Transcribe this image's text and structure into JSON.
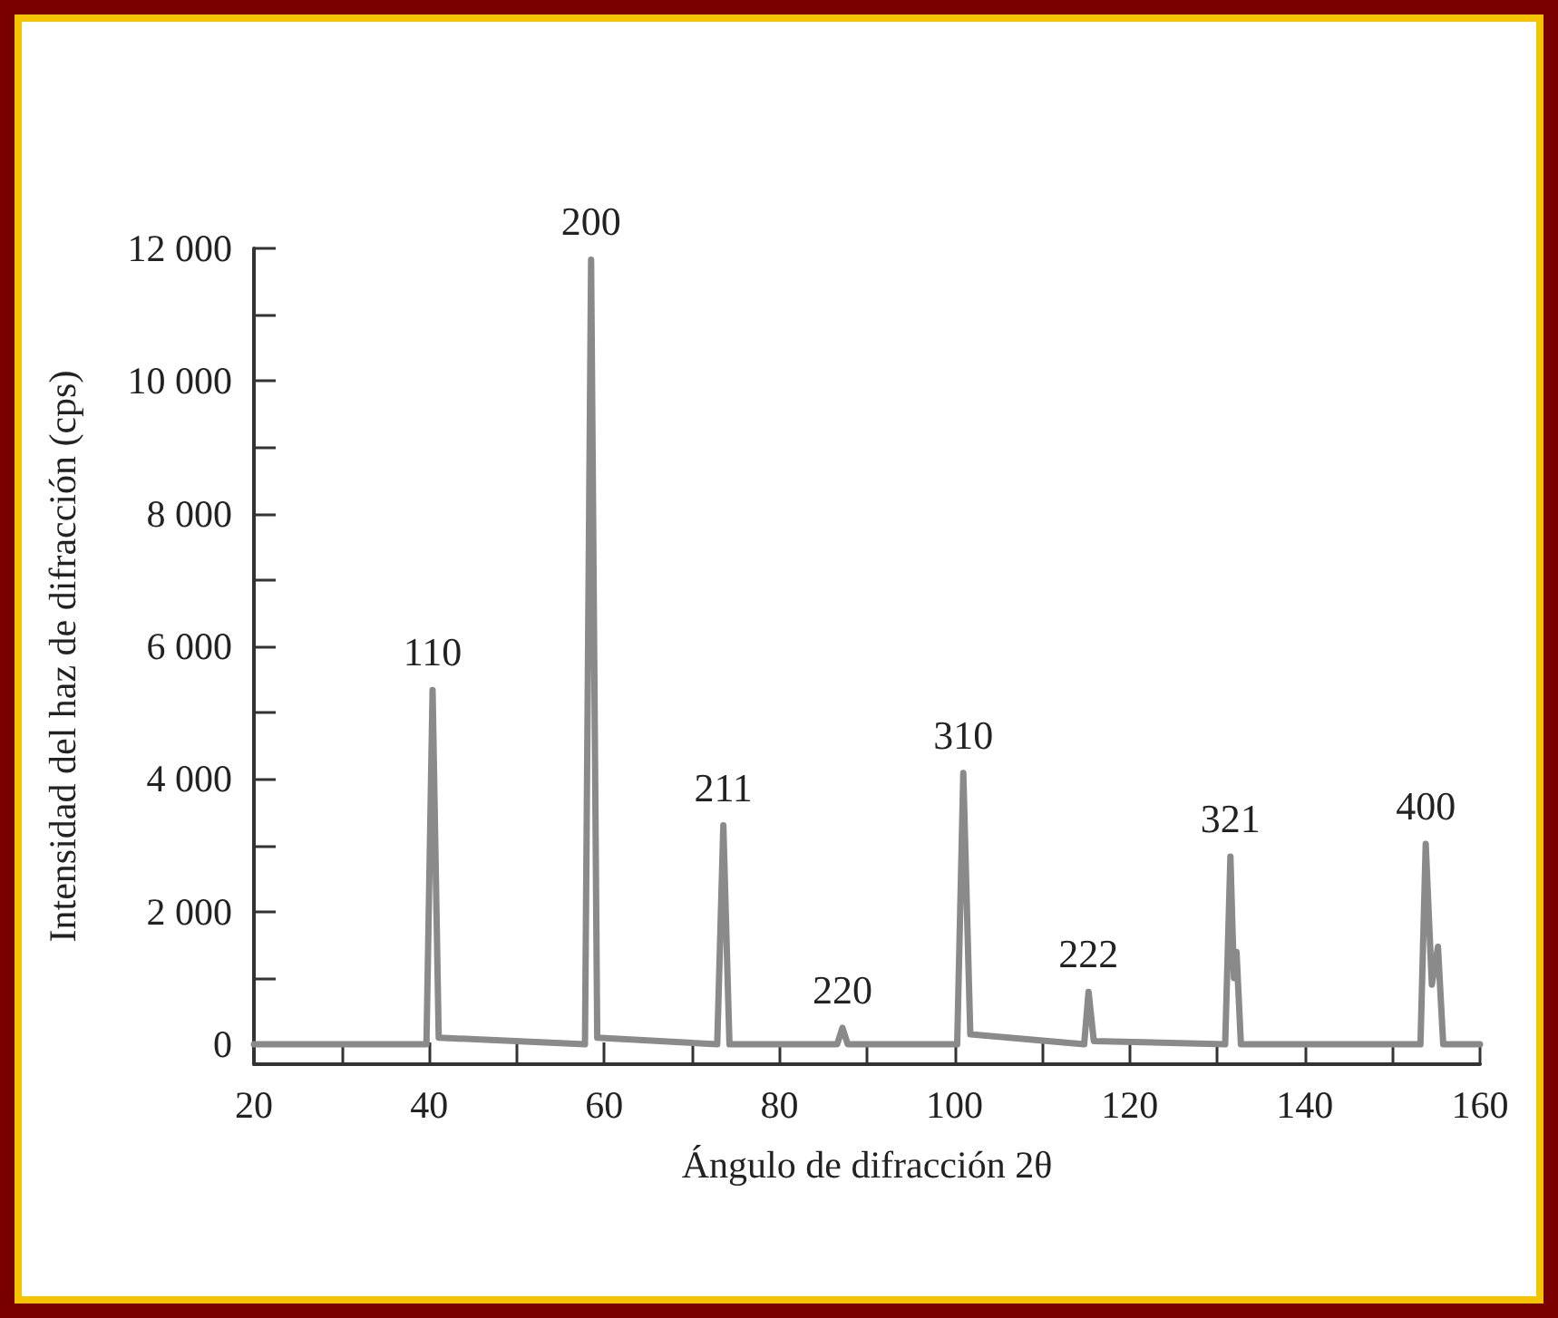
{
  "chart_data": {
    "type": "line",
    "xlabel": "Ángulo de difracción 2θ",
    "ylabel": "Intensidad del haz de difracción (cps)",
    "x": [
      20,
      39.7,
      40.4,
      41.1,
      57.8,
      58.5,
      59.2,
      72.9,
      73.6,
      74.3,
      86.6,
      87.2,
      87.8,
      100.3,
      101.0,
      101.8,
      114.8,
      115.3,
      115.9,
      130.9,
      131.5,
      131.9,
      132.2,
      132.7,
      153.2,
      153.8,
      154.5,
      155.2,
      155.8,
      160
    ],
    "series": [
      {
        "color": "#8a8a8a",
        "values": [
          0,
          0,
          5340,
          100,
          0,
          11830,
          100,
          0,
          3300,
          0,
          0,
          250,
          0,
          0,
          4090,
          150,
          0,
          790,
          50,
          0,
          2830,
          1000,
          1390,
          0,
          0,
          3020,
          900,
          1470,
          0,
          0
        ]
      }
    ],
    "xlim": [
      20,
      160
    ],
    "xticks": [
      20,
      {
        "value": 30,
        "label": null
      },
      40,
      {
        "value": 50,
        "label": null
      },
      60,
      {
        "value": 70,
        "label": null
      },
      80,
      {
        "value": 90,
        "label": null
      },
      100,
      {
        "value": 110,
        "label": null
      },
      120,
      {
        "value": 130,
        "label": null
      },
      140,
      {
        "value": 150,
        "label": null
      },
      160
    ],
    "ylim": [
      -300,
      12000
    ],
    "yticks": [
      0,
      {
        "value": 1000,
        "label": null
      },
      {
        "value": 2000,
        "label": "2 000"
      },
      {
        "value": 3000,
        "label": null
      },
      {
        "value": 4000,
        "label": "4 000"
      },
      {
        "value": 5000,
        "label": null
      },
      {
        "value": 6000,
        "label": "6 000"
      },
      {
        "value": 7000,
        "label": null
      },
      {
        "value": 8000,
        "label": "8 000"
      },
      {
        "value": 9000,
        "label": null
      },
      {
        "value": 10000,
        "label": "10 000"
      },
      {
        "value": 11000,
        "label": null
      },
      {
        "value": 12000,
        "label": "12 000"
      }
    ],
    "annotations": [
      {
        "text": "110",
        "x": 40.4,
        "y": 5340
      },
      {
        "text": "200",
        "x": 58.5,
        "y": 11830
      },
      {
        "text": "211",
        "x": 73.6,
        "y": 3300
      },
      {
        "text": "220",
        "x": 87.2,
        "y": 250
      },
      {
        "text": "310",
        "x": 101.0,
        "y": 4090
      },
      {
        "text": "222",
        "x": 115.3,
        "y": 790
      },
      {
        "text": "321",
        "x": 131.5,
        "y": 2830
      },
      {
        "text": "400",
        "x": 153.8,
        "y": 3020
      }
    ],
    "marker": "none",
    "line_style": "solid"
  }
}
